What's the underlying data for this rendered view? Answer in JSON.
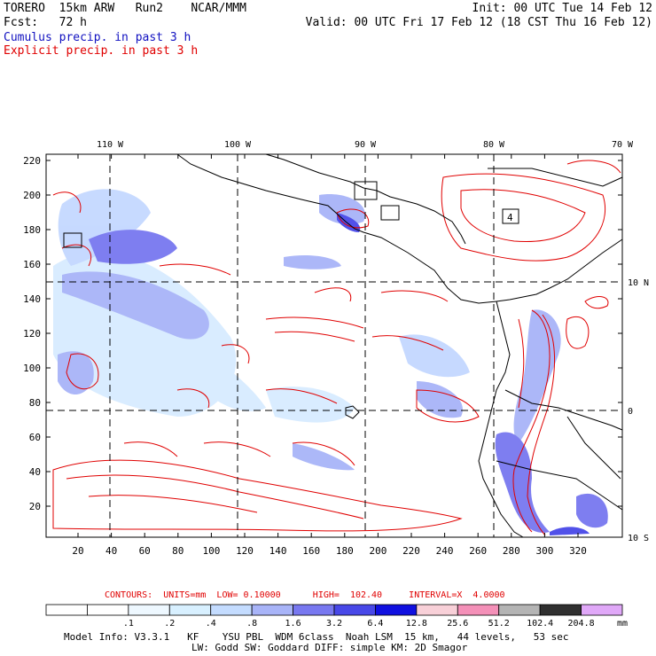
{
  "header": {
    "model_line": "TORERO  15km ARW   Run2    NCAR/MMM",
    "forecast_line": "Fcst:   72 h",
    "init_line": "Init: 00 UTC Tue 14 Feb 12",
    "valid_line": "Valid: 00 UTC Fri 17 Feb 12 (18 CST Thu 16 Feb 12)",
    "cumulus_label": "Cumulus precip. in past 3 h",
    "explicit_label": "Explicit precip. in past 3 h"
  },
  "map": {
    "top_lon_labels": [
      "110 W",
      "100 W",
      "90 W",
      "80 W",
      "70 W"
    ],
    "right_lat_labels": [
      "10 N",
      "0",
      "10 S"
    ],
    "y_grid_labels": [
      "220",
      "200",
      "180",
      "160",
      "140",
      "120",
      "100",
      "80",
      "60",
      "40",
      "20"
    ],
    "x_grid_labels": [
      "20",
      "40",
      "60",
      "80",
      "100",
      "120",
      "140",
      "160",
      "180",
      "200",
      "220",
      "240",
      "260",
      "280",
      "300",
      "320"
    ],
    "station_marker": "4",
    "colors": {
      "explicit_contour": "#e00000",
      "coast": "#000000",
      "grid": "#000000"
    }
  },
  "legend": {
    "contour_info": "CONTOURS:  UNITS=mm  LOW= 0.10000      HIGH=  102.40     INTERVAL=X  4.0000",
    "unit": "mm",
    "thresholds": [
      ".1",
      ".2",
      ".4",
      ".8",
      "1.6",
      "3.2",
      "6.4",
      "12.8",
      "25.6",
      "51.2",
      "102.4",
      "204.8"
    ],
    "colors": [
      "#ffffff",
      "#ffffff",
      "#eef8ff",
      "#d8f0ff",
      "#c4dcff",
      "#a8b4f8",
      "#7878f0",
      "#4848e8",
      "#1010e0",
      "#f8d0d8",
      "#f490b8",
      "#b4b4b4",
      "#303030",
      "#e0a8f8"
    ]
  },
  "footer": {
    "line1": "Model Info: V3.3.1   KF    YSU PBL  WDM 6class  Noah LSM  15 km,   44 levels,   53 sec",
    "line2": "LW: Godd SW: Goddard DIFF: simple KM: 2D Smagor"
  }
}
